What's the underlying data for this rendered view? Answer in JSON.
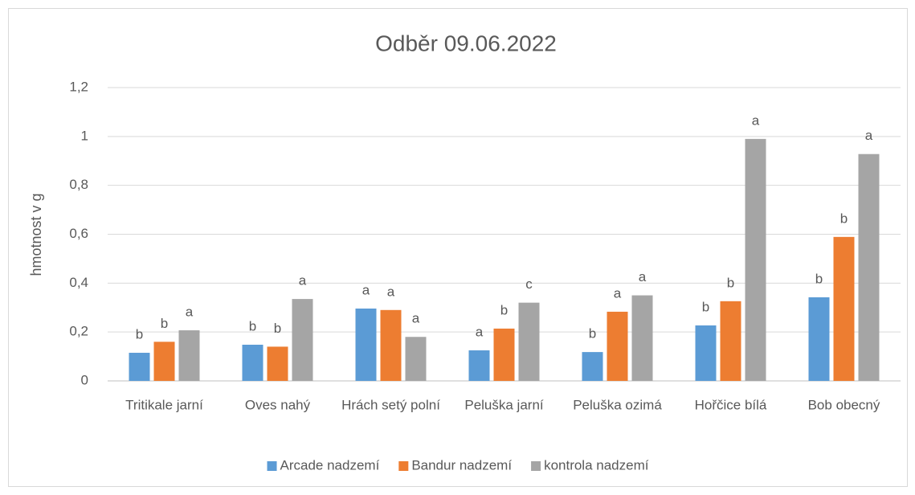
{
  "chart_data": {
    "type": "bar",
    "title": "Odběr 09.06.2022",
    "y_label": "hmotnost v g",
    "categories": [
      "Tritikale jarní",
      "Oves nahý",
      "Hrách setý polní",
      "Peluška jarní",
      "Peluška ozimá",
      "Hořčice bílá",
      "Bob obecný"
    ],
    "series": [
      {
        "name": "Arcade nadzemí",
        "color": "#5b9bd5",
        "values": [
          0.115,
          0.148,
          0.296,
          0.125,
          0.118,
          0.227,
          0.342
        ],
        "significance": [
          "b",
          "b",
          "a",
          "a",
          "b",
          "b",
          "b"
        ]
      },
      {
        "name": "Bandur nadzemí",
        "color": "#ed7d31",
        "values": [
          0.16,
          0.14,
          0.29,
          0.214,
          0.283,
          0.326,
          0.589
        ],
        "significance": [
          "b",
          "b",
          "a",
          "b",
          "a",
          "b",
          "b"
        ]
      },
      {
        "name": "kontrola nadzemí",
        "color": "#a5a5a5",
        "values": [
          0.207,
          0.335,
          0.18,
          0.32,
          0.35,
          0.99,
          0.928
        ],
        "significance": [
          "a",
          "a",
          "a",
          "c",
          "a",
          "a",
          "a"
        ]
      }
    ],
    "ylim": [
      0,
      1.2
    ],
    "yticks": [
      0,
      {
        "value": 0.2,
        "label": "0,2"
      },
      {
        "value": 0.4,
        "label": "0,4"
      },
      {
        "value": 0.6,
        "label": "0,6"
      },
      {
        "value": 0.8,
        "label": "0,8"
      },
      1,
      {
        "value": 1.2,
        "label": "1,2"
      }
    ],
    "grid": true,
    "legend": "bottom"
  }
}
